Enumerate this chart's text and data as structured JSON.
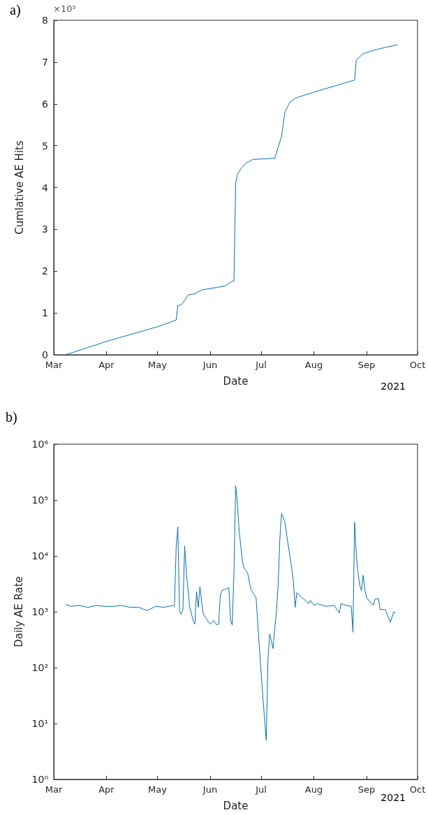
{
  "chart_data": [
    {
      "type": "line",
      "xlabel": "Date",
      "ylabel": "Cumlative AE Hits",
      "annotations": [
        "a)",
        "×10⁵",
        "2021"
      ],
      "xlim": [
        "2021-03-01",
        "2021-10-01"
      ],
      "xticks": [
        {
          "value": "2021-03-01",
          "label": "Mar"
        },
        {
          "value": "2021-04-01",
          "label": "Apr"
        },
        {
          "value": "2021-05-01",
          "label": "May"
        },
        {
          "value": "2021-06-01",
          "label": "Jun"
        },
        {
          "value": "2021-07-01",
          "label": "Jul"
        },
        {
          "value": "2021-08-01",
          "label": "Aug"
        },
        {
          "value": "2021-09-01",
          "label": "Sep"
        },
        {
          "value": "2021-10-01",
          "label": "Oct"
        }
      ],
      "ylim": [
        0,
        8
      ],
      "yticks": [
        0,
        1,
        2,
        3,
        4,
        5,
        6,
        7,
        8
      ],
      "grid": false,
      "marker": "none",
      "line_style": "solid",
      "x": [
        "2021-03-08",
        "2021-04-01",
        "2021-05-01",
        "2021-05-12",
        "2021-05-13",
        "2021-05-15",
        "2021-05-17",
        "2021-05-19",
        "2021-05-23",
        "2021-05-27",
        "2021-06-05",
        "2021-06-10",
        "2021-06-14",
        "2021-06-15",
        "2021-06-16",
        "2021-06-17",
        "2021-06-19",
        "2021-06-22",
        "2021-06-26",
        "2021-07-09",
        "2021-07-13",
        "2021-07-15",
        "2021-07-18",
        "2021-07-22",
        "2021-08-01",
        "2021-08-15",
        "2021-08-25",
        "2021-08-26",
        "2021-08-30",
        "2021-09-05",
        "2021-09-12",
        "2021-09-19"
      ],
      "series": [
        {
          "color": "#0072bd",
          "values": [
            0,
            0.32,
            0.67,
            0.83,
            1.18,
            1.19,
            1.3,
            1.43,
            1.46,
            1.55,
            1.61,
            1.65,
            1.76,
            1.76,
            4.1,
            4.3,
            4.45,
            4.58,
            4.67,
            4.7,
            5.22,
            5.8,
            6.05,
            6.15,
            6.28,
            6.45,
            6.57,
            7.05,
            7.2,
            7.28,
            7.35,
            7.41
          ]
        }
      ]
    },
    {
      "type": "line",
      "log": "y",
      "xlabel": "Date",
      "ylabel": "Daily AE Rate",
      "annotations": [
        "b)",
        "2021"
      ],
      "xlim": [
        "2021-03-01",
        "2021-10-01"
      ],
      "xticks": [
        {
          "value": "2021-03-01",
          "label": "Mar"
        },
        {
          "value": "2021-04-01",
          "label": "Apr"
        },
        {
          "value": "2021-05-01",
          "label": "May"
        },
        {
          "value": "2021-06-01",
          "label": "Jun"
        },
        {
          "value": "2021-07-01",
          "label": "Jul"
        },
        {
          "value": "2021-08-01",
          "label": "Aug"
        },
        {
          "value": "2021-09-01",
          "label": "Sep"
        },
        {
          "value": "2021-10-01",
          "label": "Oct"
        }
      ],
      "ylim": [
        1,
        1000000
      ],
      "yticks": [
        {
          "value": 1,
          "label": "10⁰"
        },
        {
          "value": 10,
          "label": "10¹"
        },
        {
          "value": 100,
          "label": "10²"
        },
        {
          "value": 1000,
          "label": "10³"
        },
        {
          "value": 10000,
          "label": "10⁴"
        },
        {
          "value": 100000,
          "label": "10⁵"
        },
        {
          "value": 1000000,
          "label": "10⁶"
        }
      ],
      "grid": false,
      "marker": "none",
      "line_style": "solid",
      "x": [
        "2021-03-08",
        "2021-03-11",
        "2021-03-16",
        "2021-03-21",
        "2021-03-26",
        "2021-03-31",
        "2021-04-05",
        "2021-04-10",
        "2021-04-15",
        "2021-04-20",
        "2021-04-25",
        "2021-04-30",
        "2021-05-05",
        "2021-05-10",
        "2021-05-11",
        "2021-05-12",
        "2021-05-13",
        "2021-05-14",
        "2021-05-15",
        "2021-05-16",
        "2021-05-17",
        "2021-05-18",
        "2021-05-20",
        "2021-05-22",
        "2021-05-23",
        "2021-05-24",
        "2021-05-25",
        "2021-05-26",
        "2021-05-27",
        "2021-05-28",
        "2021-06-01",
        "2021-06-03",
        "2021-06-05",
        "2021-06-06",
        "2021-06-07",
        "2021-06-08",
        "2021-06-12",
        "2021-06-13",
        "2021-06-14",
        "2021-06-15",
        "2021-06-16",
        "2021-06-17",
        "2021-06-18",
        "2021-06-19",
        "2021-06-20",
        "2021-06-21",
        "2021-06-23",
        "2021-06-25",
        "2021-06-27",
        "2021-06-28",
        "2021-06-30",
        "2021-07-02",
        "2021-07-04",
        "2021-07-05",
        "2021-07-06",
        "2021-07-07",
        "2021-07-08",
        "2021-07-09",
        "2021-07-10",
        "2021-07-11",
        "2021-07-12",
        "2021-07-13",
        "2021-07-15",
        "2021-07-17",
        "2021-07-19",
        "2021-07-20",
        "2021-07-21",
        "2021-07-22",
        "2021-07-25",
        "2021-07-27",
        "2021-07-29",
        "2021-07-30",
        "2021-08-01",
        "2021-08-03",
        "2021-08-08",
        "2021-08-13",
        "2021-08-16",
        "2021-08-17",
        "2021-08-20",
        "2021-08-23",
        "2021-08-24",
        "2021-08-25",
        "2021-08-26",
        "2021-08-27",
        "2021-08-28",
        "2021-08-29",
        "2021-08-30",
        "2021-08-31",
        "2021-09-01",
        "2021-09-03",
        "2021-09-05",
        "2021-09-06",
        "2021-09-08",
        "2021-09-09",
        "2021-09-12",
        "2021-09-15",
        "2021-09-17",
        "2021-09-18"
      ],
      "series": [
        {
          "color": "#0072bd",
          "values": [
            1350,
            1250,
            1300,
            1200,
            1300,
            1250,
            1250,
            1300,
            1200,
            1200,
            1050,
            1250,
            1200,
            1300,
            1250,
            14000,
            33000,
            1000,
            900,
            1100,
            15000,
            5000,
            1200,
            700,
            600,
            2300,
            1200,
            2800,
            1500,
            900,
            600,
            700,
            580,
            600,
            2000,
            2400,
            2700,
            700,
            580,
            5000,
            180000,
            90000,
            30000,
            15000,
            8000,
            6000,
            5000,
            2500,
            2000,
            1800,
            220,
            30,
            5,
            140,
            400,
            300,
            220,
            500,
            1000,
            3000,
            20000,
            58000,
            40000,
            15000,
            6000,
            3500,
            1200,
            2200,
            1800,
            1600,
            1400,
            1600,
            1300,
            1400,
            1250,
            1300,
            950,
            1400,
            1300,
            1250,
            430,
            40000,
            10000,
            5000,
            3000,
            2400,
            4500,
            2500,
            1800,
            1500,
            1300,
            1700,
            1700,
            1100,
            1100,
            650,
            1000,
            950
          ]
        }
      ]
    }
  ]
}
